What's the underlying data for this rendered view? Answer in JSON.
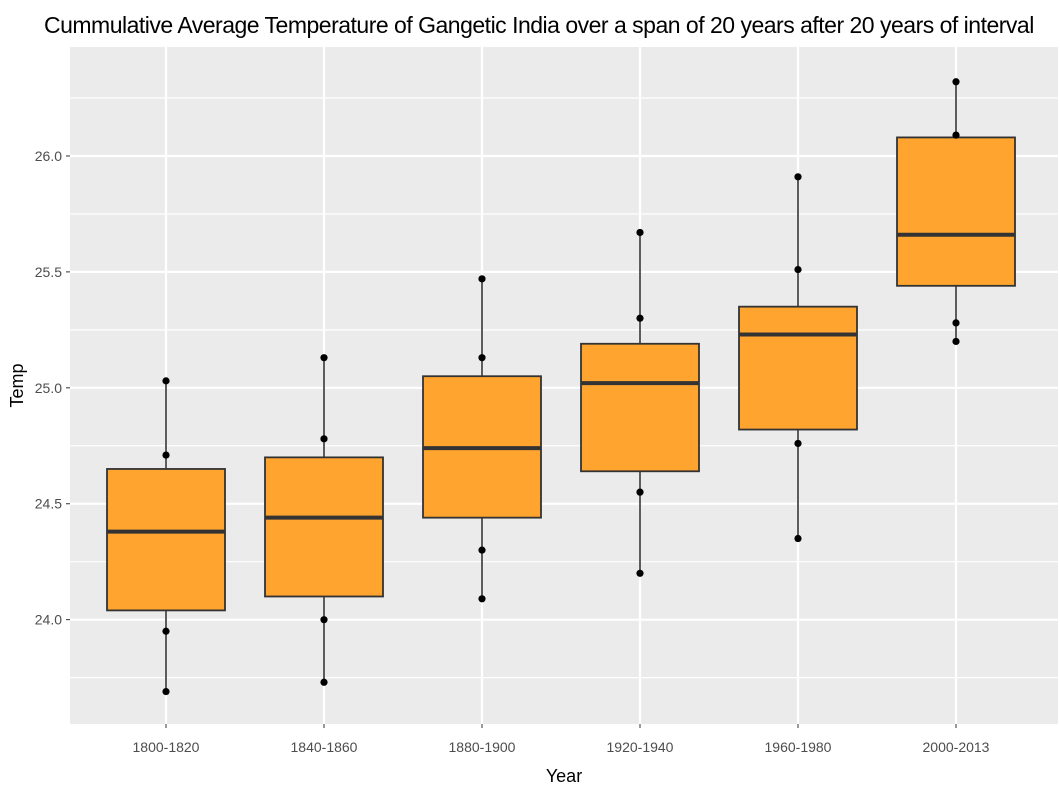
{
  "chart_data": {
    "type": "box",
    "title": "Cummulative Average Temperature of Gangetic India over a span of 20 years after 20 years of interval",
    "xlabel": "Year",
    "ylabel": "Temp",
    "categories": [
      "1800-1820",
      "1840-1860",
      "1880-1900",
      "1920-1940",
      "1960-1980",
      "2000-2013"
    ],
    "ylim": [
      23.55,
      26.47
    ],
    "yticks": [
      24.0,
      24.5,
      25.0,
      25.5,
      26.0
    ],
    "ytick_labels": [
      "24.0",
      "24.5",
      "25.0",
      "25.5",
      "26.0"
    ],
    "grid": true,
    "legend": "none",
    "box_color": "#ffa52f",
    "boxes": [
      {
        "category": "1800-1820",
        "q1": 24.04,
        "median": 24.38,
        "q3": 24.65,
        "points": [
          25.03,
          24.71,
          23.95,
          23.69
        ]
      },
      {
        "category": "1840-1860",
        "q1": 24.1,
        "median": 24.44,
        "q3": 24.7,
        "points": [
          25.13,
          24.78,
          24.0,
          23.73
        ]
      },
      {
        "category": "1880-1900",
        "q1": 24.44,
        "median": 24.74,
        "q3": 25.05,
        "points": [
          25.47,
          25.13,
          24.3,
          24.09
        ]
      },
      {
        "category": "1920-1940",
        "q1": 24.64,
        "median": 25.02,
        "q3": 25.19,
        "points": [
          25.67,
          25.3,
          24.55,
          24.2
        ]
      },
      {
        "category": "1960-1980",
        "q1": 24.82,
        "median": 25.23,
        "q3": 25.35,
        "points": [
          25.91,
          25.51,
          24.76,
          24.35
        ]
      },
      {
        "category": "2000-2013",
        "q1": 25.44,
        "median": 25.66,
        "q3": 26.08,
        "points": [
          26.32,
          26.09,
          25.28,
          25.2
        ]
      }
    ]
  }
}
